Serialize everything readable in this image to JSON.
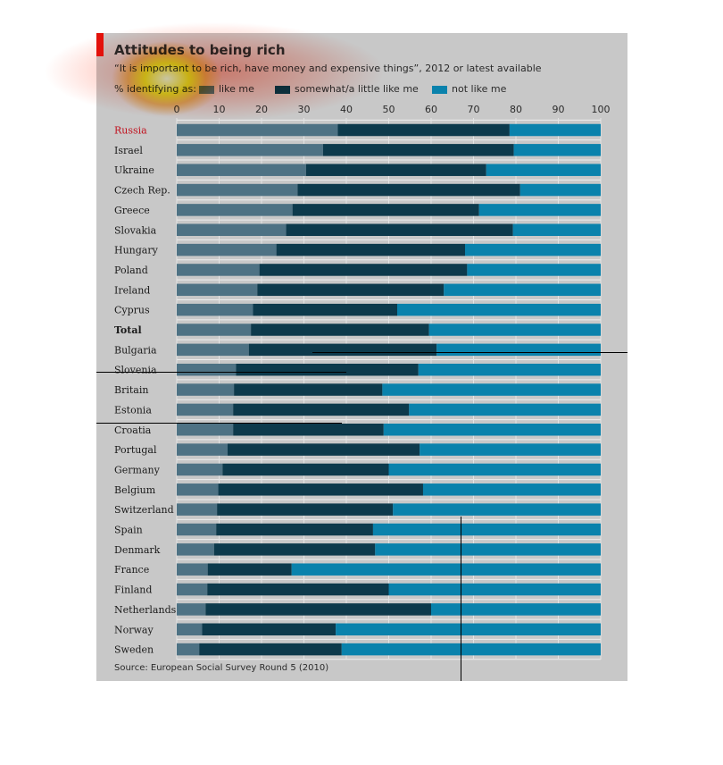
{
  "chart_data": {
    "type": "bar",
    "stacked": true,
    "orientation": "horizontal",
    "title": "Attitudes to being rich",
    "subtitle": "“It is important to be rich, have money and expensive things”, 2012 or latest available",
    "legend_prefix": "% identifying as:",
    "source": "Source: European Social Survey Round 5 (2010)",
    "xlim": [
      0,
      100
    ],
    "xticks": [
      0,
      10,
      20,
      30,
      40,
      50,
      60,
      70,
      80,
      90,
      100
    ],
    "grid": true,
    "legend_placement": "top",
    "categories": [
      "Russia",
      "Israel",
      "Ukraine",
      "Czech Rep.",
      "Greece",
      "Slovakia",
      "Hungary",
      "Poland",
      "Ireland",
      "Cyprus",
      "Total",
      "Bulgaria",
      "Slovenia",
      "Britain",
      "Estonia",
      "Croatia",
      "Portugal",
      "Germany",
      "Belgium",
      "Switzerland",
      "Spain",
      "Denmark",
      "France",
      "Finland",
      "Netherlands",
      "Norway",
      "Sweden"
    ],
    "bold_categories": [
      "Total"
    ],
    "highlight_categories": [
      "Russia"
    ],
    "series": [
      {
        "name": "like me",
        "color": "#4e7284",
        "values": [
          38,
          34.5,
          30.5,
          28.5,
          27.3,
          25.8,
          23.5,
          19.5,
          19,
          18,
          17.5,
          17,
          14,
          13.5,
          13.3,
          13.3,
          12,
          10.8,
          9.8,
          9.5,
          9.3,
          8.8,
          7.3,
          7.2,
          6.8,
          6,
          5.3
        ]
      },
      {
        "name": "somewhat/a little like me",
        "color": "#0d3a4c",
        "values": [
          40.5,
          45,
          42.5,
          52.5,
          44,
          53.5,
          44.5,
          49,
          44,
          34,
          42,
          44.3,
          43,
          35,
          41.5,
          35.5,
          45.3,
          39.2,
          48.3,
          41.5,
          37,
          38,
          19.8,
          42.8,
          53.2,
          31.5,
          33.6
        ]
      },
      {
        "name": "not like me",
        "color": "#0a82ac",
        "values": [
          21.5,
          20.5,
          27,
          19,
          28.7,
          20.7,
          32,
          31.5,
          37,
          48,
          40.5,
          38.7,
          43,
          51.5,
          45.2,
          51.2,
          42.7,
          50,
          41.9,
          49,
          53.7,
          53.2,
          72.9,
          50,
          40,
          62.5,
          61.1
        ]
      }
    ]
  }
}
